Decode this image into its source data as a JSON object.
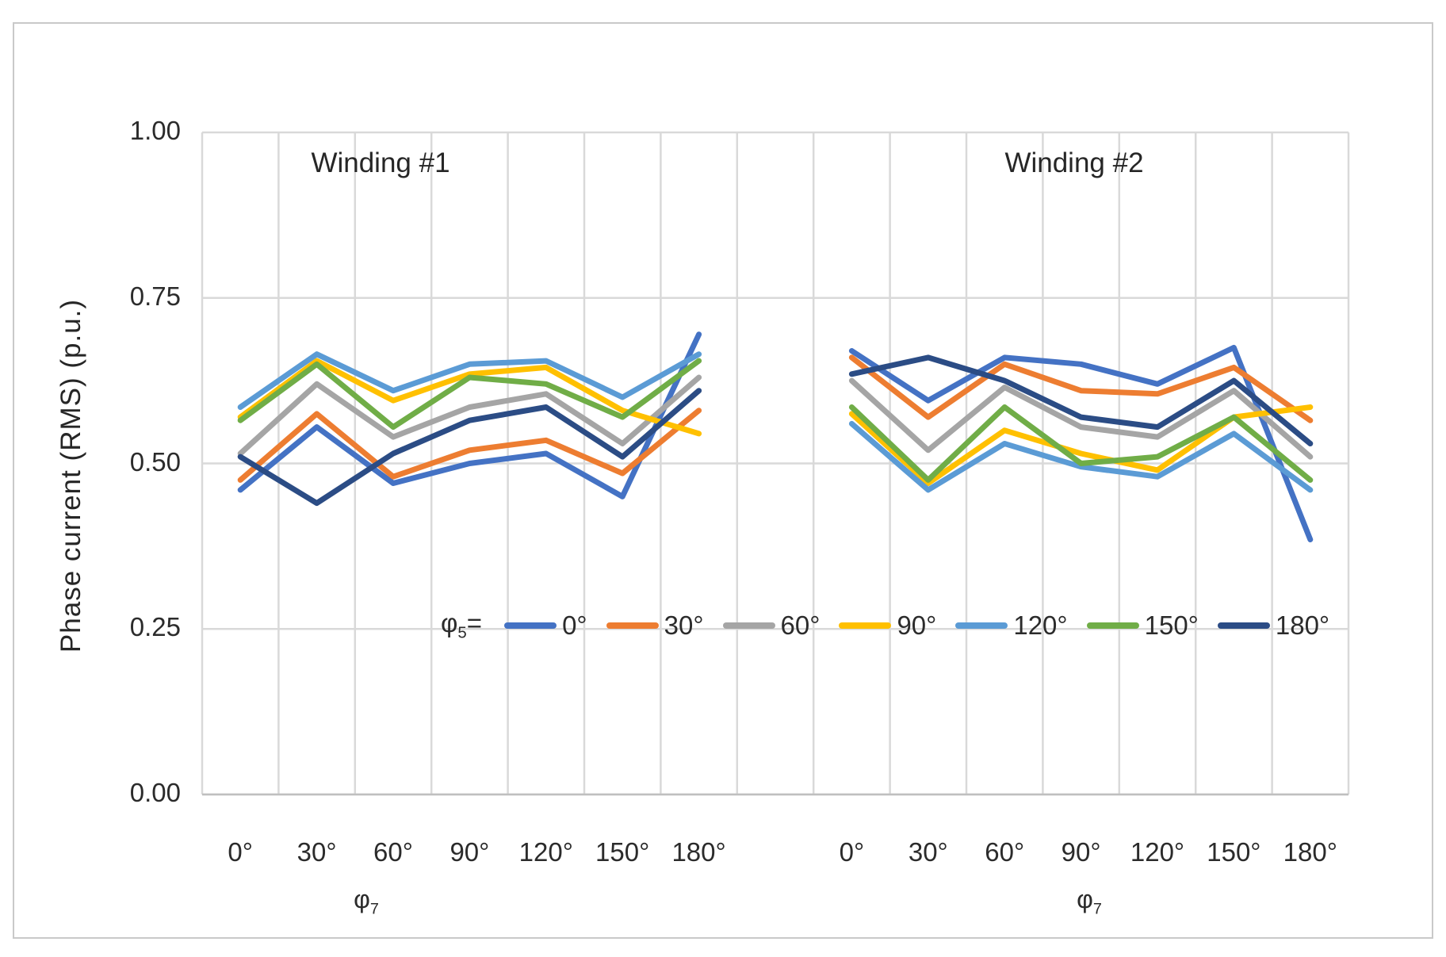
{
  "figure": {
    "background": "#ffffff",
    "border_color": "#c9c9c9"
  },
  "chart_data": {
    "type": "line",
    "title": "",
    "ylabel": "Phase current (RMS) (p.u.)",
    "xlabel": {
      "base": "φ",
      "sub": "7"
    },
    "legend_title": {
      "base": "φ",
      "sub": "5",
      "eq": "="
    },
    "legend_position": "inside-bottom-center",
    "grid": true,
    "ylim": [
      0.0,
      1.0
    ],
    "yticks": [
      {
        "label": "1.00",
        "value": 1.0
      },
      {
        "label": "0.75",
        "value": 0.75
      },
      {
        "label": "0.50",
        "value": 0.5
      },
      {
        "label": "0.25",
        "value": 0.25
      },
      {
        "label": "0.00",
        "value": 0.0
      }
    ],
    "categories": [
      "0°",
      "30°",
      "60°",
      "90°",
      "120°",
      "150°",
      "180°"
    ],
    "style": {
      "grid_color": "#d9d9d9",
      "axis_color": "#bfbfbf",
      "text_color": "#2b2b2b",
      "line_width": 7
    },
    "series_colors": {
      "0°": "#4472C4",
      "30°": "#ED7D31",
      "60°": "#A5A5A5",
      "90°": "#FFC000",
      "120°": "#5B9BD5",
      "150°": "#70AD47",
      "180°": "#2B4C85"
    },
    "panels": [
      {
        "title": "Winding #1",
        "series": [
          {
            "name": "0°",
            "color": "#4472C4",
            "values": [
              0.46,
              0.555,
              0.47,
              0.5,
              0.515,
              0.45,
              0.695
            ]
          },
          {
            "name": "30°",
            "color": "#ED7D31",
            "values": [
              0.475,
              0.575,
              0.48,
              0.52,
              0.535,
              0.485,
              0.58
            ]
          },
          {
            "name": "60°",
            "color": "#A5A5A5",
            "values": [
              0.515,
              0.62,
              0.54,
              0.585,
              0.605,
              0.53,
              0.63
            ]
          },
          {
            "name": "90°",
            "color": "#FFC000",
            "values": [
              0.57,
              0.655,
              0.595,
              0.635,
              0.645,
              0.58,
              0.545
            ]
          },
          {
            "name": "120°",
            "color": "#5B9BD5",
            "values": [
              0.585,
              0.665,
              0.61,
              0.65,
              0.655,
              0.6,
              0.665
            ]
          },
          {
            "name": "150°",
            "color": "#70AD47",
            "values": [
              0.565,
              0.65,
              0.555,
              0.63,
              0.62,
              0.57,
              0.655
            ]
          },
          {
            "name": "180°",
            "color": "#2B4C85",
            "values": [
              0.51,
              0.44,
              0.515,
              0.565,
              0.585,
              0.51,
              0.61
            ]
          }
        ]
      },
      {
        "title": "Winding #2",
        "series": [
          {
            "name": "0°",
            "color": "#4472C4",
            "values": [
              0.67,
              0.595,
              0.66,
              0.65,
              0.62,
              0.675,
              0.385
            ]
          },
          {
            "name": "30°",
            "color": "#ED7D31",
            "values": [
              0.66,
              0.57,
              0.65,
              0.61,
              0.605,
              0.645,
              0.565
            ]
          },
          {
            "name": "60°",
            "color": "#A5A5A5",
            "values": [
              0.625,
              0.52,
              0.615,
              0.555,
              0.54,
              0.61,
              0.51
            ]
          },
          {
            "name": "90°",
            "color": "#FFC000",
            "values": [
              0.575,
              0.47,
              0.55,
              0.515,
              0.49,
              0.57,
              0.585
            ]
          },
          {
            "name": "120°",
            "color": "#5B9BD5",
            "values": [
              0.56,
              0.46,
              0.53,
              0.495,
              0.48,
              0.545,
              0.46
            ]
          },
          {
            "name": "150°",
            "color": "#70AD47",
            "values": [
              0.585,
              0.475,
              0.585,
              0.5,
              0.51,
              0.57,
              0.475
            ]
          },
          {
            "name": "180°",
            "color": "#2B4C85",
            "values": [
              0.635,
              0.66,
              0.625,
              0.57,
              0.555,
              0.625,
              0.53
            ]
          }
        ]
      }
    ]
  }
}
